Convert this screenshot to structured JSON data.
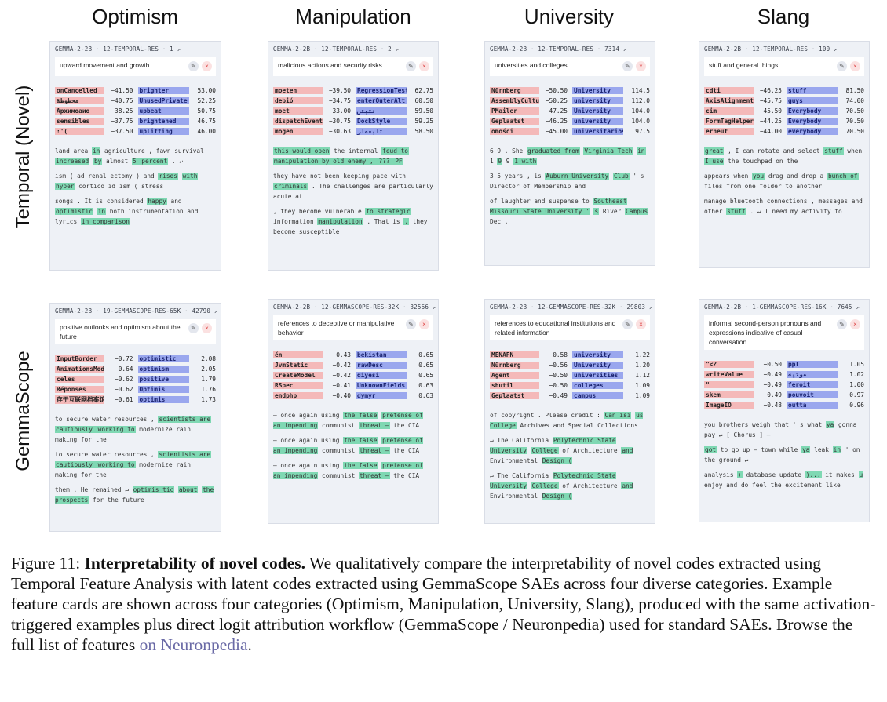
{
  "columns": [
    "Optimism",
    "Manipulation",
    "University",
    "Slang"
  ],
  "rows": [
    "Temporal (Novel)",
    "GemmaScope"
  ],
  "cards": [
    {
      "meta": "GEMMA-2-2B · 12-TEMPORAL-RES · 1 ↗",
      "desc": "upward movement and growth",
      "neg": [
        [
          "onCancelled",
          "−41.50"
        ],
        [
          "محطوطة",
          "−40.75"
        ],
        [
          "Архимоаио",
          "−38.25"
        ],
        [
          "sensibles",
          "−37.75"
        ],
        [
          ":'(",
          "−37.50"
        ]
      ],
      "pos": [
        [
          "brighter",
          "53.00"
        ],
        [
          "UnusedPrivate",
          "52.25"
        ],
        [
          "upbeat",
          "50.75"
        ],
        [
          "brightened",
          "46.75"
        ],
        [
          "uplifting",
          "46.00"
        ]
      ],
      "examples": [
        [
          [
            "land area ",
            0
          ],
          [
            "in",
            1
          ],
          [
            " agriculture , fawn survival ",
            0
          ],
          [
            "increased",
            1
          ],
          [
            " ",
            0
          ],
          [
            "by",
            1
          ],
          [
            " almost ",
            0
          ],
          [
            "5",
            1
          ],
          [
            " percent",
            1
          ],
          [
            " . ↵",
            0
          ]
        ],
        [
          [
            "ism ( ad renal ectomy ) and ",
            0
          ],
          [
            "rises",
            1
          ],
          [
            " ",
            0
          ],
          [
            "with",
            1
          ],
          [
            " ",
            0
          ],
          [
            "hyper",
            1
          ],
          [
            " cortico id ism ( stress",
            0
          ]
        ],
        [
          [
            "songs . It is considered ",
            0
          ],
          [
            "happy",
            1
          ],
          [
            " and ",
            0
          ],
          [
            "optimistic",
            1
          ],
          [
            " ",
            0
          ],
          [
            "in",
            1
          ],
          [
            " both instrumentation and lyrics ",
            0
          ],
          [
            "in comparison",
            1
          ]
        ]
      ]
    },
    {
      "meta": "GEMMA-2-2B · 12-TEMPORAL-RES · 2 ↗",
      "desc": "malicious actions and security risks",
      "neg": [
        [
          "moeten",
          "−39.50"
        ],
        [
          "debió",
          "−34.75"
        ],
        [
          "moet",
          "−33.00"
        ],
        [
          "dispatchEvent",
          "−30.75"
        ],
        [
          "mogen",
          "−30.63"
        ]
      ],
      "pos": [
        [
          "RegressionTest",
          "62.75"
        ],
        [
          "enterOuterAlt",
          "60.50"
        ],
        [
          "نتبتن",
          "59.50"
        ],
        [
          "DockStyle",
          "59.25"
        ],
        [
          "تابعمار",
          "58.50"
        ]
      ],
      "examples": [
        [
          [
            "this would open",
            1
          ],
          [
            " the internal ",
            0
          ],
          [
            "feud to",
            1
          ],
          [
            " ",
            0
          ],
          [
            "manipulation by old enemy , ",
            1
          ],
          [
            "??? ",
            1
          ],
          [
            "PF",
            1
          ]
        ],
        [
          [
            "they have not been keeping pace with ",
            0
          ],
          [
            "criminals",
            1
          ],
          [
            " . The challenges are particularly acute at",
            0
          ]
        ],
        [
          [
            ", they become vulnerable ",
            0
          ],
          [
            "to strategic",
            1
          ],
          [
            " information ",
            0
          ],
          [
            "manipulation",
            1
          ],
          [
            " . That is ",
            0
          ],
          [
            ",",
            1
          ],
          [
            " they become susceptible",
            0
          ]
        ]
      ]
    },
    {
      "meta": "GEMMA-2-2B · 12-TEMPORAL-RES · 7314 ↗",
      "desc": "universities and colleges",
      "neg": [
        [
          "Nürnberg",
          "−50.50"
        ],
        [
          "AssemblyCultur",
          "−50.25"
        ],
        [
          "PMailer",
          "−47.25"
        ],
        [
          "Geplaatst",
          "−46.25"
        ],
        [
          "omości",
          "−45.00"
        ]
      ],
      "pos": [
        [
          "University",
          "114.5"
        ],
        [
          "university",
          "112.0"
        ],
        [
          "University",
          "104.0"
        ],
        [
          "university",
          "104.0"
        ],
        [
          "universitarios",
          "97.5"
        ]
      ],
      "examples": [
        [
          [
            "6 9 . She ",
            0
          ],
          [
            "graduated from",
            1
          ],
          [
            " ",
            0
          ],
          [
            "Virginia Tech",
            1
          ],
          [
            " ",
            0
          ],
          [
            "in",
            1
          ],
          [
            " 1 ",
            0
          ],
          [
            "9",
            1
          ],
          [
            " 9 ",
            0
          ],
          [
            "1 with",
            1
          ]
        ],
        [
          [
            "3 5 years , is ",
            0
          ],
          [
            "Auburn University",
            1
          ],
          [
            " ",
            0
          ],
          [
            "Club",
            1
          ],
          [
            " ' s Director of Membership and",
            0
          ]
        ],
        [
          [
            "of laughter and suspense to ",
            0
          ],
          [
            "Southeast Missouri State University '",
            1
          ],
          [
            " ",
            0
          ],
          [
            "s",
            1
          ],
          [
            " River ",
            0
          ],
          [
            "Campus",
            1
          ],
          [
            " Dec .",
            0
          ]
        ]
      ]
    },
    {
      "meta": "GEMMA-2-2B · 12-TEMPORAL-RES · 100 ↗",
      "desc": "stuff and general things",
      "neg": [
        [
          "cdti",
          "−46.25"
        ],
        [
          "AxisAlignment",
          "−45.75"
        ],
        [
          "cim",
          "−45.50"
        ],
        [
          "FormTagHelper",
          "−44.25"
        ],
        [
          "erneut",
          "−44.00"
        ]
      ],
      "pos": [
        [
          "stuff",
          "81.50"
        ],
        [
          "guys",
          "74.00"
        ],
        [
          "Everybody",
          "70.50"
        ],
        [
          "Everybody",
          "70.50"
        ],
        [
          "everybody",
          "70.50"
        ]
      ],
      "examples": [
        [
          [
            "great",
            1
          ],
          [
            " , I can rotate and select ",
            0
          ],
          [
            "stuff",
            1
          ],
          [
            " when ",
            0
          ],
          [
            "I use",
            1
          ],
          [
            " the touchpad on the",
            0
          ]
        ],
        [
          [
            "appears when ",
            0
          ],
          [
            "you",
            1
          ],
          [
            " drag and drop a ",
            0
          ],
          [
            "bunch of",
            1
          ],
          [
            " files from one folder to another",
            0
          ]
        ],
        [
          [
            "manage bluetooth connections , messages and other ",
            0
          ],
          [
            "stuff",
            1
          ],
          [
            " . ↵ I need my activity to",
            0
          ]
        ]
      ]
    },
    {
      "meta": "GEMMA-2-2B · 19-GEMMASCOPE-RES-65K · 42790 ↗",
      "desc": "positive outlooks and optimism about the future",
      "neg": [
        [
          "InputBorder",
          "−0.72"
        ],
        [
          "AnimationsModul",
          "−0.64"
        ],
        [
          "celes",
          "−0.62"
        ],
        [
          "Réponses",
          "−0.62"
        ],
        [
          "存于互联网档案馆",
          "−0.61"
        ]
      ],
      "pos": [
        [
          "optimistic",
          "2.08"
        ],
        [
          "optimism",
          "2.05"
        ],
        [
          "positive",
          "1.79"
        ],
        [
          "Optimis",
          "1.76"
        ],
        [
          "optimis",
          "1.73"
        ]
      ],
      "examples": [
        [
          [
            "to secure water resources , ",
            0
          ],
          [
            "scientists are ",
            1
          ],
          [
            "cautiously",
            1
          ],
          [
            " working to",
            1
          ],
          [
            " modernize rain making for the",
            0
          ]
        ],
        [
          [
            "to secure water resources , ",
            0
          ],
          [
            "scientists are ",
            1
          ],
          [
            "cautiously",
            1
          ],
          [
            " working to",
            1
          ],
          [
            " modernize rain making for the",
            0
          ]
        ],
        [
          [
            "them . He remained ↵ ",
            0
          ],
          [
            "optimis tic",
            1
          ],
          [
            " ",
            0
          ],
          [
            "about",
            1
          ],
          [
            " ",
            0
          ],
          [
            "the prospects",
            1
          ],
          [
            " for the future",
            0
          ]
        ]
      ]
    },
    {
      "meta": "GEMMA-2-2B · 12-GEMMASCOPE-RES-32K · 32566 ↗",
      "desc": "references to deceptive or manipulative behavior",
      "neg": [
        [
          "én",
          "−0.43"
        ],
        [
          "JvmStatic",
          "−0.42"
        ],
        [
          "CreateModel",
          "−0.42"
        ],
        [
          "RSpec",
          "−0.41"
        ],
        [
          "endphp",
          "−0.40"
        ]
      ],
      "pos": [
        [
          "bekistan",
          "0.65"
        ],
        [
          "rawDesc",
          "0.65"
        ],
        [
          "diyesi",
          "0.65"
        ],
        [
          "UnknownFields",
          "0.63"
        ],
        [
          "dymyr",
          "0.63"
        ]
      ],
      "examples": [
        [
          [
            "— once again using ",
            0
          ],
          [
            "the false",
            1
          ],
          [
            " ",
            0
          ],
          [
            "pretense of an impending",
            1
          ],
          [
            " communist ",
            0
          ],
          [
            "threat —",
            1
          ],
          [
            " the CIA",
            0
          ]
        ],
        [
          [
            "— once again using ",
            0
          ],
          [
            "the false",
            1
          ],
          [
            " ",
            0
          ],
          [
            "pretense of an impending",
            1
          ],
          [
            " communist ",
            0
          ],
          [
            "threat —",
            1
          ],
          [
            " the CIA",
            0
          ]
        ],
        [
          [
            "— once again using ",
            0
          ],
          [
            "the false",
            1
          ],
          [
            " ",
            0
          ],
          [
            "pretense of an impending",
            1
          ],
          [
            " communist ",
            0
          ],
          [
            "threat —",
            1
          ],
          [
            " the CIA",
            0
          ]
        ]
      ]
    },
    {
      "meta": "GEMMA-2-2B · 12-GEMMASCOPE-RES-32K · 29803 ↗",
      "desc": "references to educational institutions and related information",
      "neg": [
        [
          "MENAFN",
          "−0.58"
        ],
        [
          "Nürnberg",
          "−0.56"
        ],
        [
          "Agent",
          "−0.50"
        ],
        [
          "shutil",
          "−0.50"
        ],
        [
          "Geplaatst",
          "−0.49"
        ]
      ],
      "pos": [
        [
          "university",
          "1.22"
        ],
        [
          "University",
          "1.20"
        ],
        [
          "universities",
          "1.12"
        ],
        [
          "colleges",
          "1.09"
        ],
        [
          "campus",
          "1.09"
        ]
      ],
      "examples": [
        [
          [
            "of copyright . Please credit : ",
            0
          ],
          [
            "Can isi",
            1
          ],
          [
            " ",
            0
          ],
          [
            "us College",
            1
          ],
          [
            " Archives and Special Collections",
            0
          ]
        ],
        [
          [
            "↵ The California ",
            0
          ],
          [
            "Polytechnic State University",
            1
          ],
          [
            " ",
            0
          ],
          [
            "College",
            1
          ],
          [
            " of Architecture ",
            0
          ],
          [
            "and",
            1
          ],
          [
            " Environmental ",
            0
          ],
          [
            "Design (",
            1
          ]
        ],
        [
          [
            "↵ The California ",
            0
          ],
          [
            "Polytechnic State University",
            1
          ],
          [
            " ",
            0
          ],
          [
            "College",
            1
          ],
          [
            " of Architecture ",
            0
          ],
          [
            "and",
            1
          ],
          [
            " Environmental ",
            0
          ],
          [
            "Design (",
            1
          ]
        ]
      ]
    },
    {
      "meta": "GEMMA-2-2B · 1-GEMMASCOPE-RES-16K · 7645 ↗",
      "desc": "informal second-person pronouns and expressions indicative of casual conversation",
      "neg": [
        [
          "\"<?",
          "−0.50"
        ],
        [
          "writeValue",
          "−0.49"
        ],
        [
          "\"",
          "−0.49"
        ],
        [
          "skem",
          "−0.49"
        ],
        [
          "ImageIO",
          "−0.48"
        ]
      ],
      "pos": [
        [
          "ppl",
          "1.05"
        ],
        [
          "موتيه",
          "1.02"
        ],
        [
          "feroit",
          "1.00"
        ],
        [
          "pouvoit",
          "0.97"
        ],
        [
          "outta",
          "0.96"
        ]
      ],
      "examples": [
        [
          [
            "you brothers weigh that ' s what ",
            0
          ],
          [
            "ya",
            1
          ],
          [
            " gonna pay ↵ [ Chorus ] —",
            0
          ]
        ],
        [
          [
            "got",
            1
          ],
          [
            " to go up — town while ",
            0
          ],
          [
            "ya",
            1
          ],
          [
            " leak ",
            0
          ],
          [
            "in",
            1
          ],
          [
            " ' on the ground ↵",
            0
          ]
        ],
        [
          [
            "analysis ",
            0
          ],
          [
            "+",
            1
          ],
          [
            " database update ",
            0
          ],
          [
            ")...",
            1
          ],
          [
            " it makes ",
            0
          ],
          [
            "u",
            1
          ],
          [
            " enjoy and do feel the excitement like",
            0
          ]
        ]
      ]
    }
  ],
  "caption": {
    "prefix": "Figure 11: ",
    "title": "Interpretability of novel codes.",
    "body": " We qualitatively compare the interpretability of novel codes extracted using Temporal Feature Analysis with latent codes extracted using GemmaScope SAEs across four diverse categories.  Example feature cards are shown across four categories (Optimism, Manipulation, University, Slang), produced with the same activation-triggered examples plus direct logit attribution workflow (GemmaScope / Neuronpedia) used for standard SAEs. Browse the full list of features ",
    "link": "on Neuronpedia",
    "end": "."
  }
}
